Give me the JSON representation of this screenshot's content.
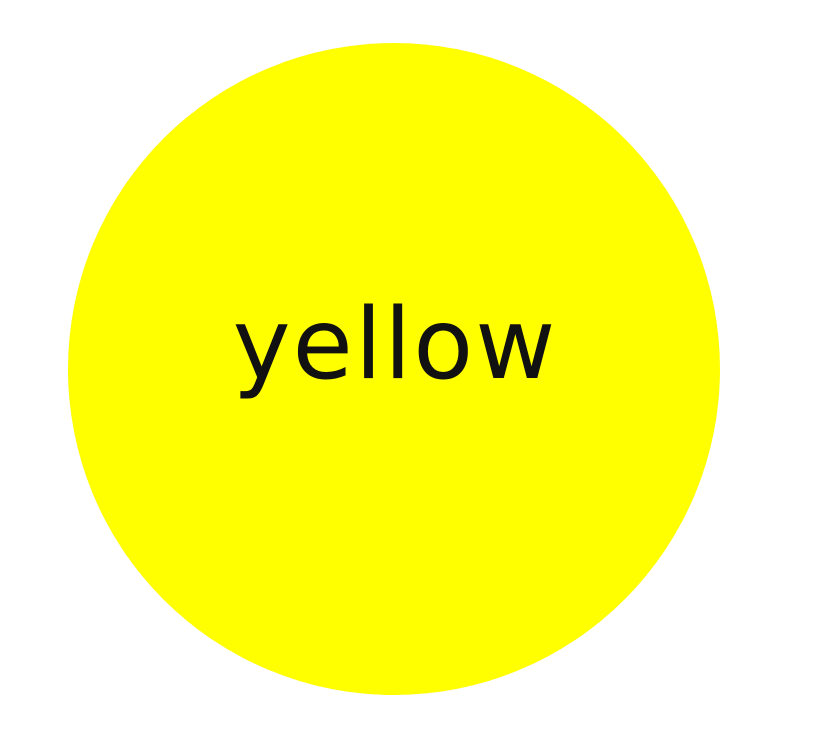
{
  "circle": {
    "label": "yellow",
    "fill_color": "#ffff00",
    "text_color": "#111111"
  },
  "background_color": "#ffffff"
}
